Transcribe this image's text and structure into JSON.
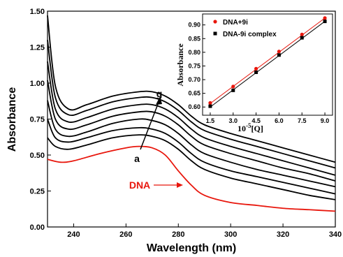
{
  "colors": {
    "black": "#000000",
    "red": "#e8160c"
  },
  "chart_data": [
    {
      "type": "line",
      "xlabel": "Wavelength (nm)",
      "ylabel": "Absorbance",
      "xlim": [
        230,
        340
      ],
      "ylim": [
        0.0,
        1.5
      ],
      "xticks": [
        "240",
        "260",
        "280",
        "300",
        "320",
        "340"
      ],
      "yticks": [
        "0.00",
        "0.25",
        "0.50",
        "0.75",
        "1.00",
        "1.25",
        "1.50"
      ],
      "grid": false,
      "series": [
        {
          "name": "DNA",
          "color": "#e8160c",
          "x": [
            230,
            235,
            240,
            250,
            260,
            265,
            270,
            275,
            280,
            285,
            290,
            300,
            310,
            320,
            330,
            340
          ],
          "y": [
            0.47,
            0.45,
            0.46,
            0.51,
            0.55,
            0.56,
            0.55,
            0.5,
            0.39,
            0.29,
            0.22,
            0.17,
            0.15,
            0.13,
            0.12,
            0.11
          ]
        },
        {
          "color": "#000000",
          "x": [
            230,
            233,
            238,
            245,
            255,
            265,
            270,
            275,
            280,
            285,
            290,
            300,
            310,
            320,
            330,
            340
          ],
          "y": [
            0.62,
            0.56,
            0.54,
            0.57,
            0.62,
            0.64,
            0.63,
            0.6,
            0.54,
            0.46,
            0.4,
            0.34,
            0.3,
            0.26,
            0.22,
            0.19
          ]
        },
        {
          "color": "#000000",
          "x": [
            230,
            233,
            238,
            245,
            255,
            265,
            270,
            275,
            280,
            285,
            290,
            300,
            310,
            320,
            330,
            340
          ],
          "y": [
            0.75,
            0.62,
            0.59,
            0.62,
            0.67,
            0.69,
            0.68,
            0.65,
            0.59,
            0.51,
            0.45,
            0.39,
            0.35,
            0.31,
            0.27,
            0.23
          ]
        },
        {
          "color": "#000000",
          "x": [
            230,
            233,
            238,
            245,
            255,
            265,
            270,
            275,
            280,
            285,
            290,
            300,
            310,
            320,
            330,
            340
          ],
          "y": [
            0.88,
            0.68,
            0.63,
            0.66,
            0.72,
            0.75,
            0.74,
            0.71,
            0.65,
            0.57,
            0.51,
            0.45,
            0.4,
            0.36,
            0.32,
            0.28
          ]
        },
        {
          "color": "#000000",
          "x": [
            230,
            233,
            238,
            245,
            255,
            265,
            270,
            275,
            280,
            285,
            290,
            300,
            310,
            320,
            330,
            340
          ],
          "y": [
            1.02,
            0.75,
            0.68,
            0.71,
            0.77,
            0.8,
            0.8,
            0.77,
            0.71,
            0.63,
            0.57,
            0.51,
            0.46,
            0.41,
            0.37,
            0.32
          ]
        },
        {
          "color": "#000000",
          "x": [
            230,
            233,
            238,
            245,
            255,
            265,
            270,
            275,
            280,
            285,
            290,
            300,
            310,
            320,
            330,
            340
          ],
          "y": [
            1.15,
            0.82,
            0.73,
            0.76,
            0.82,
            0.85,
            0.85,
            0.82,
            0.76,
            0.68,
            0.62,
            0.56,
            0.51,
            0.46,
            0.41,
            0.36
          ]
        },
        {
          "color": "#000000",
          "x": [
            230,
            233,
            238,
            245,
            255,
            265,
            270,
            275,
            280,
            285,
            290,
            300,
            310,
            320,
            330,
            340
          ],
          "y": [
            1.3,
            0.9,
            0.78,
            0.81,
            0.87,
            0.9,
            0.9,
            0.87,
            0.81,
            0.73,
            0.67,
            0.61,
            0.56,
            0.51,
            0.46,
            0.41
          ]
        },
        {
          "color": "#000000",
          "x": [
            230,
            233,
            238,
            245,
            255,
            265,
            270,
            275,
            280,
            285,
            290,
            300,
            310,
            320,
            330,
            340
          ],
          "y": [
            1.47,
            0.98,
            0.82,
            0.85,
            0.91,
            0.94,
            0.94,
            0.91,
            0.85,
            0.77,
            0.71,
            0.65,
            0.6,
            0.55,
            0.5,
            0.45
          ]
        }
      ],
      "annotations": {
        "arrow_start": "a",
        "arrow_end": "g",
        "dna_label": "DNA"
      }
    },
    {
      "type": "scatter",
      "xlabel_base": "10",
      "xlabel_exp": "-5",
      "xlabel_rest": "[Q]",
      "ylabel": "Absorbance",
      "xlim": [
        1.0,
        9.5
      ],
      "ylim": [
        0.57,
        0.94
      ],
      "xticks": [
        "1.5",
        "3.0",
        "4.5",
        "6.0",
        "7.5",
        "9.0"
      ],
      "yticks": [
        "0.60",
        "0.65",
        "0.70",
        "0.75",
        "0.80",
        "0.85",
        "0.90"
      ],
      "legend": "top-left",
      "series": [
        {
          "name": "DNA+9i",
          "color": "#e8160c",
          "marker": "circle",
          "x": [
            1.5,
            3.0,
            4.5,
            6.0,
            7.5,
            9.0
          ],
          "y": [
            0.615,
            0.675,
            0.74,
            0.803,
            0.865,
            0.925
          ],
          "fit": [
            [
              1.5,
              0.613
            ],
            [
              9.0,
              0.925
            ]
          ]
        },
        {
          "name": "DNA-9i complex",
          "color": "#000000",
          "marker": "square",
          "x": [
            1.5,
            3.0,
            4.5,
            6.0,
            7.5,
            9.0
          ],
          "y": [
            0.603,
            0.661,
            0.727,
            0.79,
            0.853,
            0.913
          ],
          "fit": [
            [
              1.5,
              0.6
            ],
            [
              9.0,
              0.913
            ]
          ]
        }
      ]
    }
  ]
}
